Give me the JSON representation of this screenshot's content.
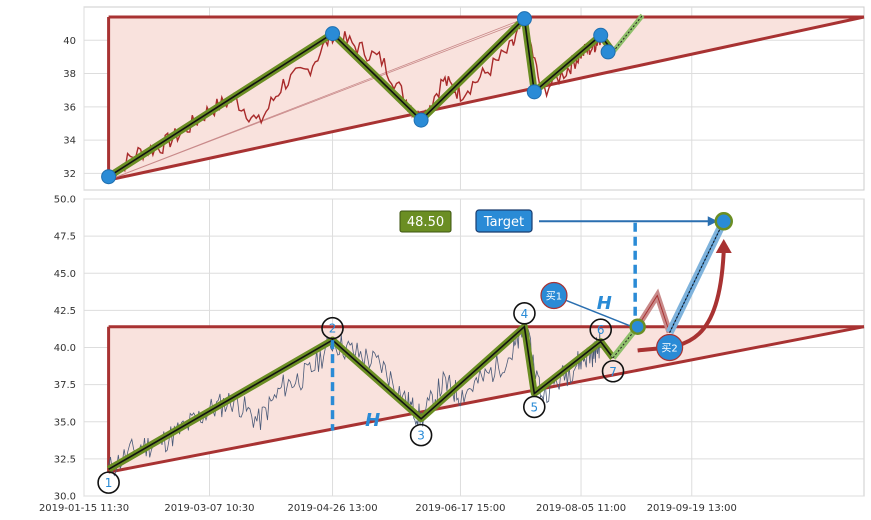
{
  "chart_data": [
    {
      "type": "line",
      "panel": "top",
      "description_source": "price line with pattern overlay",
      "ylim": [
        31,
        42
      ],
      "yticks": [
        "32",
        "34",
        "36",
        "38",
        "40"
      ],
      "xlim": [
        "2019-01-15",
        "2019-11-28"
      ],
      "price_path": [
        [
          "2019-01-25",
          31.8
        ],
        [
          "2019-02-05",
          33.2
        ],
        [
          "2019-02-15",
          33.6
        ],
        [
          "2019-02-25",
          34.6
        ],
        [
          "2019-03-07",
          35.8
        ],
        [
          "2019-03-17",
          36.5
        ],
        [
          "2019-03-27",
          35.0
        ],
        [
          "2019-04-06",
          37.4
        ],
        [
          "2019-04-16",
          38.2
        ],
        [
          "2019-04-26",
          40.4
        ],
        [
          "2019-05-06",
          39.6
        ],
        [
          "2019-05-16",
          38.8
        ],
        [
          "2019-05-26",
          36.4
        ],
        [
          "2019-06-01",
          35.2
        ],
        [
          "2019-06-10",
          37.6
        ],
        [
          "2019-06-17",
          36.8
        ],
        [
          "2019-06-27",
          38.0
        ],
        [
          "2019-07-08",
          39.6
        ],
        [
          "2019-07-13",
          41.3
        ],
        [
          "2019-07-20",
          36.9
        ],
        [
          "2019-07-30",
          38.2
        ],
        [
          "2019-08-05",
          39.2
        ],
        [
          "2019-08-10",
          39.6
        ],
        [
          "2019-08-13",
          40.3
        ]
      ],
      "zigzag": [
        [
          "2019-01-25",
          31.8
        ],
        [
          "2019-04-26",
          40.4
        ],
        [
          "2019-06-01",
          35.2
        ],
        [
          "2019-07-13",
          41.3
        ],
        [
          "2019-07-17",
          36.9
        ],
        [
          "2019-08-13",
          40.3
        ],
        [
          "2019-08-18",
          39.3
        ],
        [
          "2019-08-30",
          41.5
        ]
      ],
      "pivot_markers": [
        [
          "2019-01-25",
          31.8
        ],
        [
          "2019-04-26",
          40.4
        ],
        [
          "2019-06-01",
          35.2
        ],
        [
          "2019-07-13",
          41.3
        ],
        [
          "2019-07-17",
          36.9
        ],
        [
          "2019-08-13",
          40.3
        ],
        [
          "2019-08-16",
          39.3
        ]
      ],
      "triangle": {
        "resistance": 41.4,
        "support_start": [
          "2019-01-25",
          31.6
        ],
        "support_end": [
          "2019-11-28",
          41.4
        ]
      }
    },
    {
      "type": "line",
      "panel": "bottom",
      "ylim": [
        30.0,
        50.0
      ],
      "yticks": [
        "30.0",
        "32.5",
        "35.0",
        "37.5",
        "40.0",
        "42.5",
        "45.0",
        "47.5",
        "50.0"
      ],
      "xticks": [
        "2019-01-15 11:30",
        "2019-03-07 10:30",
        "2019-04-26 13:00",
        "2019-06-17 15:00",
        "2019-08-05 11:00",
        "2019-09-19 13:00"
      ],
      "xlim": [
        "2019-01-15",
        "2019-11-28"
      ],
      "zigzag_points": [
        {
          "label": "1",
          "x": "2019-01-25",
          "y": 31.8
        },
        {
          "label": "2",
          "x": "2019-04-26",
          "y": 40.5
        },
        {
          "label": "3",
          "x": "2019-06-01",
          "y": 35.2
        },
        {
          "label": "4",
          "x": "2019-07-13",
          "y": 41.4
        },
        {
          "label": "5",
          "x": "2019-07-17",
          "y": 36.9
        },
        {
          "label": "6",
          "x": "2019-08-13",
          "y": 40.4
        },
        {
          "label": "7",
          "x": "2019-08-18",
          "y": 39.3
        }
      ],
      "triangle": {
        "resistance": 41.4,
        "support_start": [
          "2019-01-25",
          31.6
        ],
        "support_end": [
          "2019-11-28",
          41.4
        ]
      },
      "annotations": {
        "price_box": "48.50",
        "target_box": "Target",
        "target_value": 48.5,
        "target_date": "2019-10-02",
        "buy1_label": "买1",
        "buy2_label": "买2",
        "height_label": "H"
      }
    }
  ]
}
